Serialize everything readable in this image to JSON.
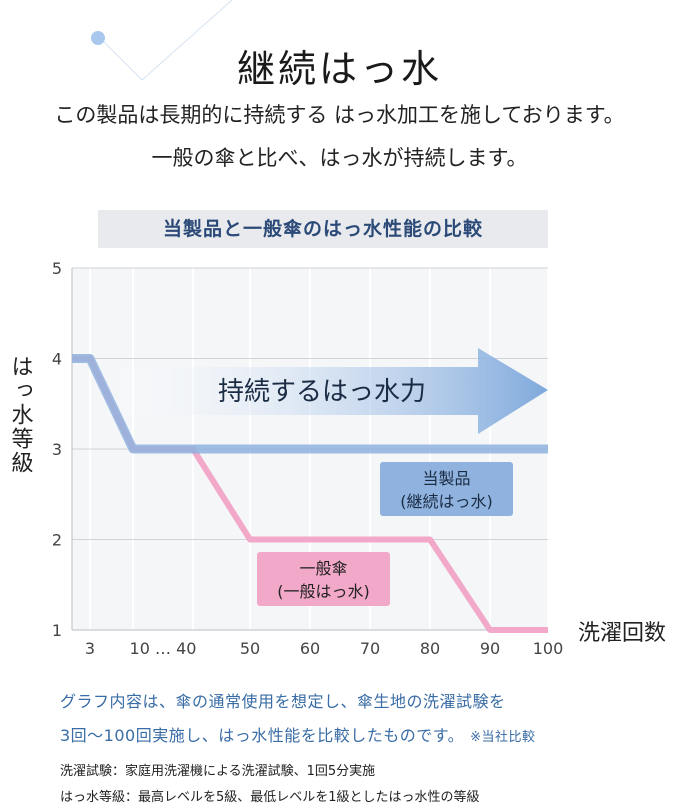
{
  "title": "継続はっ水",
  "intro": {
    "line1": "この製品は長期的に持続する はっ水加工を施しております。",
    "line2": "一般の傘と比べ、はっ水が持続します。"
  },
  "colors": {
    "product": "#8fb3de",
    "general": "#f2a8c8",
    "arrow": "#7fa9dc",
    "grid": "#d0d3d8",
    "title_bg": "#e8eaee",
    "accent_text": "#3a6ca5"
  },
  "chart_data": {
    "type": "line",
    "title": "当製品と一般傘のはっ水性能の比較",
    "ylabel": "はっ水等級",
    "xlabel": "洗濯回数",
    "ylim": [
      1,
      5
    ],
    "y_ticks": [
      "1",
      "2",
      "3",
      "4",
      "5"
    ],
    "x_ticks": [
      "3",
      "10 … 40",
      "50",
      "60",
      "70",
      "80",
      "90",
      "100"
    ],
    "x_positions": [
      3,
      10,
      40,
      50,
      60,
      70,
      80,
      90,
      100
    ],
    "grid": true,
    "series": [
      {
        "name": "当製品",
        "sublabel": "(継続はっ水)",
        "points": [
          [
            0,
            4
          ],
          [
            3,
            4
          ],
          [
            10,
            3
          ],
          [
            40,
            3
          ],
          [
            100,
            3
          ]
        ]
      },
      {
        "name": "一般傘",
        "sublabel": "(一般はっ水)",
        "points": [
          [
            0,
            4
          ],
          [
            3,
            4
          ],
          [
            10,
            3
          ],
          [
            40,
            3
          ],
          [
            50,
            2
          ],
          [
            80,
            2
          ],
          [
            90,
            1
          ],
          [
            100,
            1
          ]
        ]
      }
    ],
    "annotation": "持続するはっ水力"
  },
  "footnote": {
    "line1": "グラフ内容は、傘の通常使用を想定し、傘生地の洗濯試験を",
    "line2": "3回〜100回実施し、はっ水性能を比較したものです。",
    "remark": "※当社比較"
  },
  "notes": {
    "wash": "洗濯試験：家庭用洗濯機による洗濯試験、1回5分実施",
    "grade": "はっ水等級：最高レベルを5級、最低レベルを1級としたはっ水性の等級"
  }
}
